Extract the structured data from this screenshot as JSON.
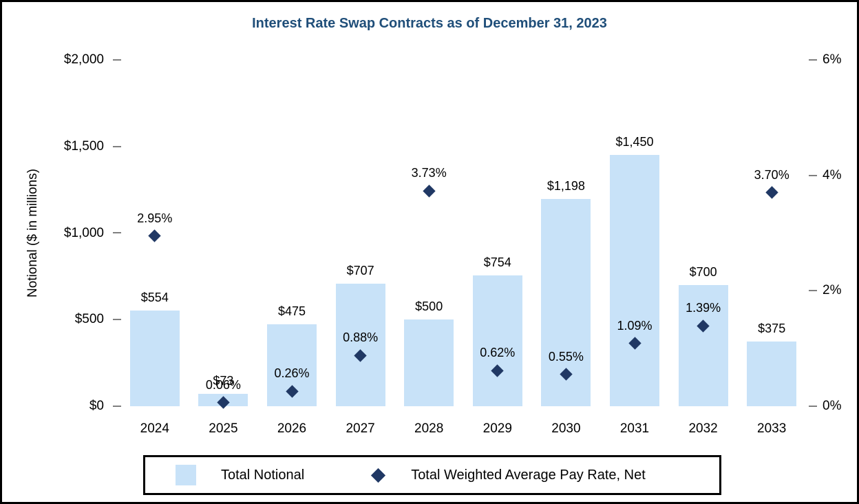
{
  "chart_data": {
    "type": "combo",
    "title": "Interest Rate Swap Contracts as of December 31, 2023",
    "ylabel_left": "Notional ($ in millions)",
    "categories": [
      "2024",
      "2025",
      "2026",
      "2027",
      "2028",
      "2029",
      "2030",
      "2031",
      "2032",
      "2033"
    ],
    "series": [
      {
        "name": "Total Notional",
        "type": "bar",
        "axis": "left",
        "color": "#C8E2F8",
        "values": [
          554,
          73,
          475,
          707,
          500,
          754,
          1198,
          1450,
          700,
          375
        ],
        "labels": [
          "$554",
          "$73",
          "$475",
          "$707",
          "$500",
          "$754",
          "$1,198",
          "$1,450",
          "$700",
          "$375"
        ]
      },
      {
        "name": "Total Weighted Average Pay Rate, Net",
        "type": "scatter",
        "marker": "diamond",
        "axis": "right",
        "color": "#203864",
        "values": [
          2.95,
          0.06,
          0.26,
          0.88,
          3.73,
          0.62,
          0.55,
          1.09,
          1.39,
          3.7
        ],
        "labels": [
          "2.95%",
          "0.06%",
          "0.26%",
          "0.88%",
          "3.73%",
          "0.62%",
          "0.55%",
          "1.09%",
          "1.39%",
          "3.70%"
        ]
      }
    ],
    "left_axis": {
      "min": 0,
      "max": 2000,
      "ticks": [
        "$2,000",
        "$1,500",
        "$1,000",
        "$500",
        "$0"
      ]
    },
    "right_axis": {
      "min": 0,
      "max": 6,
      "ticks": [
        "6%",
        "4%",
        "2%",
        "0%"
      ]
    },
    "grid": false,
    "legend": {
      "position": "bottom",
      "items": [
        {
          "label": "Total Notional",
          "swatch": "square"
        },
        {
          "label": "Total Weighted Average Pay Rate, Net",
          "swatch": "diamond"
        }
      ]
    }
  }
}
